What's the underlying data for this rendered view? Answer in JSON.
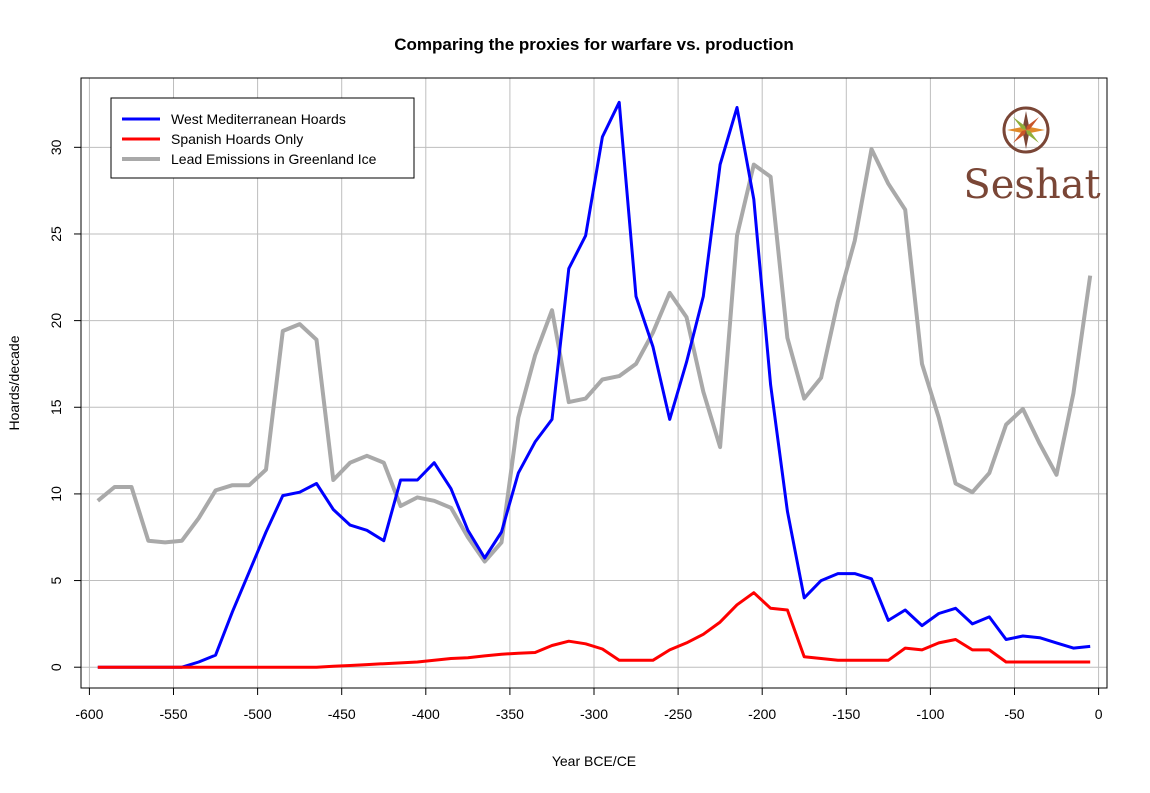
{
  "chart_data": {
    "type": "line",
    "title": "Comparing the proxies for warfare vs. production",
    "xlabel": "Year BCE/CE",
    "ylabel": "Hoards/decade",
    "xlim": [
      -605,
      5
    ],
    "ylim": [
      -1.2,
      34
    ],
    "x_ticks": [
      -600,
      -550,
      -500,
      -450,
      -400,
      -350,
      -300,
      -250,
      -200,
      -150,
      -100,
      -50,
      0
    ],
    "x_tick_labels": [
      "-600",
      "-550",
      "-500",
      "-450",
      "-400",
      "-350",
      "-300",
      "-250",
      "-200",
      "-150",
      "-100",
      "-50",
      "0"
    ],
    "y_ticks": [
      0,
      5,
      10,
      15,
      20,
      25,
      30
    ],
    "y_tick_labels": [
      "0",
      "5",
      "10",
      "15",
      "20",
      "25",
      "30"
    ],
    "grid": true,
    "legend_position": "top-left",
    "series": [
      {
        "name": "West Mediterranean Hoards",
        "color": "#0000ff",
        "x": [
          -595,
          -585,
          -575,
          -565,
          -555,
          -545,
          -535,
          -525,
          -515,
          -505,
          -495,
          -485,
          -475,
          -465,
          -455,
          -445,
          -435,
          -425,
          -415,
          -405,
          -395,
          -385,
          -375,
          -365,
          -355,
          -345,
          -335,
          -325,
          -315,
          -305,
          -295,
          -285,
          -275,
          -265,
          -255,
          -245,
          -235,
          -225,
          -215,
          -205,
          -195,
          -185,
          -175,
          -165,
          -155,
          -145,
          -135,
          -125,
          -115,
          -105,
          -95,
          -85,
          -75,
          -65,
          -55,
          -45,
          -35,
          -25,
          -15,
          -5
        ],
        "y": [
          0,
          0,
          0,
          0,
          0,
          0,
          0.3,
          0.7,
          3.2,
          5.5,
          7.8,
          9.9,
          10.1,
          10.6,
          9.1,
          8.2,
          7.9,
          7.3,
          10.8,
          10.8,
          11.8,
          10.3,
          7.9,
          6.3,
          7.8,
          11.2,
          13.0,
          14.3,
          23.0,
          24.9,
          30.6,
          32.6,
          21.4,
          18.5,
          14.3,
          17.6,
          21.4,
          29.0,
          32.3,
          27.0,
          16.3,
          9.0,
          4.0,
          5.0,
          5.4,
          5.4,
          5.1,
          2.7,
          3.3,
          2.4,
          3.1,
          3.4,
          2.5,
          2.9,
          1.6,
          1.8,
          1.7,
          1.4,
          1.1,
          1.2
        ]
      },
      {
        "name": "Spanish Hoards Only",
        "color": "#ff0000",
        "x": [
          -595,
          -585,
          -575,
          -565,
          -555,
          -545,
          -535,
          -525,
          -515,
          -505,
          -495,
          -485,
          -475,
          -465,
          -455,
          -445,
          -435,
          -425,
          -415,
          -405,
          -395,
          -385,
          -375,
          -365,
          -355,
          -345,
          -335,
          -325,
          -315,
          -305,
          -295,
          -285,
          -275,
          -265,
          -255,
          -245,
          -235,
          -225,
          -215,
          -205,
          -195,
          -185,
          -175,
          -165,
          -155,
          -145,
          -135,
          -125,
          -115,
          -105,
          -95,
          -85,
          -75,
          -65,
          -55,
          -45,
          -35,
          -25,
          -15,
          -5
        ],
        "y": [
          0,
          0,
          0,
          0,
          0,
          0,
          0,
          0,
          0,
          0,
          0,
          0,
          0,
          0,
          0.05,
          0.1,
          0.15,
          0.2,
          0.25,
          0.3,
          0.4,
          0.5,
          0.55,
          0.65,
          0.75,
          0.8,
          0.85,
          1.25,
          1.5,
          1.35,
          1.05,
          0.4,
          0.4,
          0.4,
          1.0,
          1.4,
          1.9,
          2.6,
          3.6,
          4.3,
          3.4,
          3.3,
          0.6,
          0.5,
          0.4,
          0.4,
          0.4,
          0.4,
          1.1,
          1.0,
          1.4,
          1.6,
          1.0,
          1.0,
          0.3,
          0.3,
          0.3,
          0.3,
          0.3,
          0.3
        ]
      },
      {
        "name": "Lead Emissions in Greenland Ice",
        "color": "#a9a9a9",
        "x": [
          -595,
          -585,
          -575,
          -565,
          -555,
          -545,
          -535,
          -525,
          -515,
          -505,
          -495,
          -485,
          -475,
          -465,
          -455,
          -445,
          -435,
          -425,
          -415,
          -405,
          -395,
          -385,
          -375,
          -365,
          -355,
          -345,
          -335,
          -325,
          -315,
          -305,
          -295,
          -285,
          -275,
          -265,
          -255,
          -245,
          -235,
          -225,
          -215,
          -205,
          -195,
          -185,
          -175,
          -165,
          -155,
          -145,
          -135,
          -125,
          -115,
          -105,
          -95,
          -85,
          -75,
          -65,
          -55,
          -45,
          -35,
          -25,
          -15,
          -5
        ],
        "y": [
          9.6,
          10.4,
          10.4,
          7.3,
          7.2,
          7.3,
          8.6,
          10.2,
          10.5,
          10.5,
          11.4,
          19.4,
          19.8,
          18.9,
          10.8,
          11.8,
          12.2,
          11.8,
          9.3,
          9.8,
          9.6,
          9.2,
          7.5,
          6.1,
          7.2,
          14.4,
          18.0,
          20.6,
          15.3,
          15.5,
          16.6,
          16.8,
          17.5,
          19.3,
          21.6,
          20.2,
          15.9,
          12.7,
          24.9,
          29.0,
          28.3,
          19.0,
          15.5,
          16.7,
          21.1,
          24.6,
          29.9,
          27.9,
          26.4,
          17.5,
          14.4,
          10.6,
          10.1,
          11.2,
          14.0,
          14.9,
          12.9,
          11.1,
          15.8,
          22.6
        ]
      }
    ]
  },
  "logo": {
    "text": "Seshat",
    "icon": "compass-rose-icon"
  }
}
